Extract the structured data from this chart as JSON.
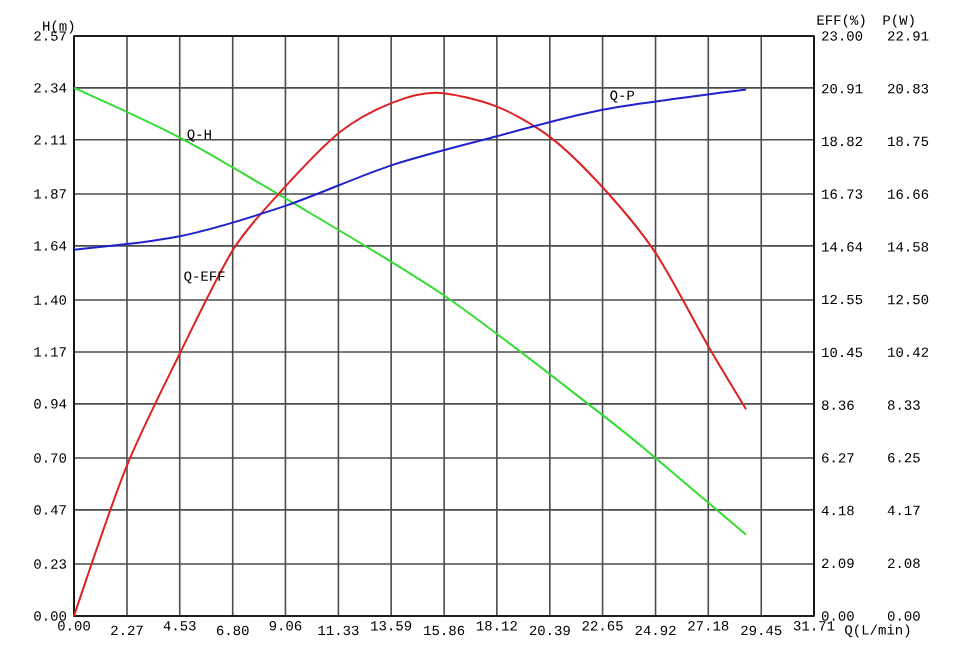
{
  "chart_data": {
    "type": "line",
    "xlabel": "Q(L/min)",
    "ylabel": "H(m)",
    "y2label": "EFF(%)",
    "y3label": "P(W)",
    "grid": true,
    "xlim": [
      0,
      31.71
    ],
    "xticks": [
      {
        "value": 0,
        "label": "0.00"
      },
      2.27,
      4.53,
      {
        "value": 6.8,
        "label": "6.80"
      },
      9.06,
      11.33,
      13.59,
      15.86,
      18.12,
      20.39,
      22.65,
      24.92,
      27.18,
      29.45,
      31.71
    ],
    "ylim": [
      0,
      2.57
    ],
    "yticks": [
      {
        "value": 0,
        "label": "0.00"
      },
      0.23,
      0.47,
      {
        "value": 0.7,
        "label": "0.70"
      },
      0.94,
      1.17,
      {
        "value": 1.4,
        "label": "1.40"
      },
      1.64,
      1.87,
      2.11,
      2.34,
      2.57
    ],
    "y2lim": [
      0,
      23
    ],
    "y2ticks": [
      {
        "value": 0,
        "label": "0.00"
      },
      2.09,
      4.18,
      6.27,
      8.36,
      10.45,
      12.55,
      14.64,
      16.73,
      18.82,
      20.91,
      {
        "value": 23,
        "label": "23.00"
      }
    ],
    "y3lim": [
      0,
      22.91
    ],
    "y3ticks": [
      {
        "value": 0,
        "label": "0.00"
      },
      2.08,
      4.17,
      6.25,
      8.33,
      10.42,
      {
        "value": 12.5,
        "label": "12.50"
      },
      14.58,
      16.66,
      18.75,
      20.83,
      22.91
    ],
    "series": [
      {
        "name": "Q-H",
        "color": "#33dd33",
        "x": [
          0,
          4.53,
          9.06,
          15.86,
          22.65,
          24.92,
          28.8
        ],
        "values": [
          2.34,
          2.12,
          1.85,
          1.42,
          0.89,
          0.7,
          0.36
        ]
      },
      {
        "name": "Q-EFF",
        "color": "#dd2222",
        "axis": "y2",
        "x": [
          0,
          2.24,
          4.53,
          6.8,
          8.83,
          11.41,
          13.62,
          15.57,
          18.12,
          20.39,
          22.65,
          24.92,
          27.18,
          28.8
        ],
        "values": [
          0,
          5.9,
          10.4,
          14.5,
          16.8,
          19.2,
          20.35,
          20.75,
          20.2,
          19.0,
          17.0,
          14.4,
          10.7,
          8.2
        ]
      },
      {
        "name": "Q-P",
        "color": "#2222cc",
        "axis": "y3",
        "x": [
          0,
          4.53,
          9.06,
          13.59,
          18.12,
          22.65,
          28.8
        ],
        "values": [
          14.47,
          15.0,
          16.2,
          17.8,
          18.95,
          20.0,
          20.8
        ]
      }
    ]
  }
}
